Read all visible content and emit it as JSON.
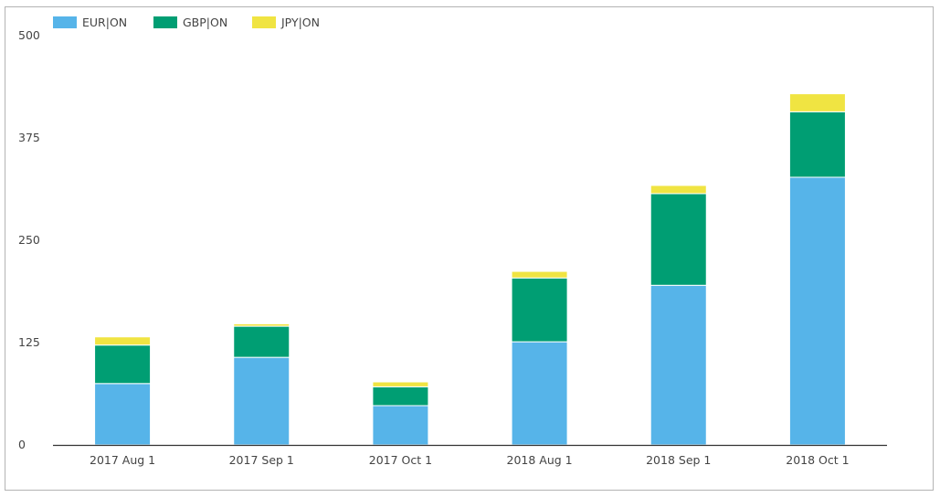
{
  "chart_data": {
    "type": "bar",
    "stacked": true,
    "categories": [
      "2017 Aug 1",
      "2017 Sep 1",
      "2017 Oct 1",
      "2018 Aug 1",
      "2018 Sep 1",
      "2018 Oct 1"
    ],
    "series": [
      {
        "name": "EUR|ON",
        "color": "#56b4e9",
        "values": [
          75,
          107,
          48,
          126,
          195,
          327
        ]
      },
      {
        "name": "GBP|ON",
        "color": "#009e73",
        "values": [
          47,
          38,
          23,
          78,
          112,
          80
        ]
      },
      {
        "name": "JPY|ON",
        "color": "#f0e442",
        "values": [
          10,
          3,
          6,
          8,
          10,
          22
        ]
      }
    ],
    "ylim": [
      0,
      500
    ],
    "yticks": [
      0,
      125,
      250,
      375,
      500
    ],
    "xlabel": "",
    "ylabel": "",
    "grid": false,
    "legend": "top-left"
  }
}
